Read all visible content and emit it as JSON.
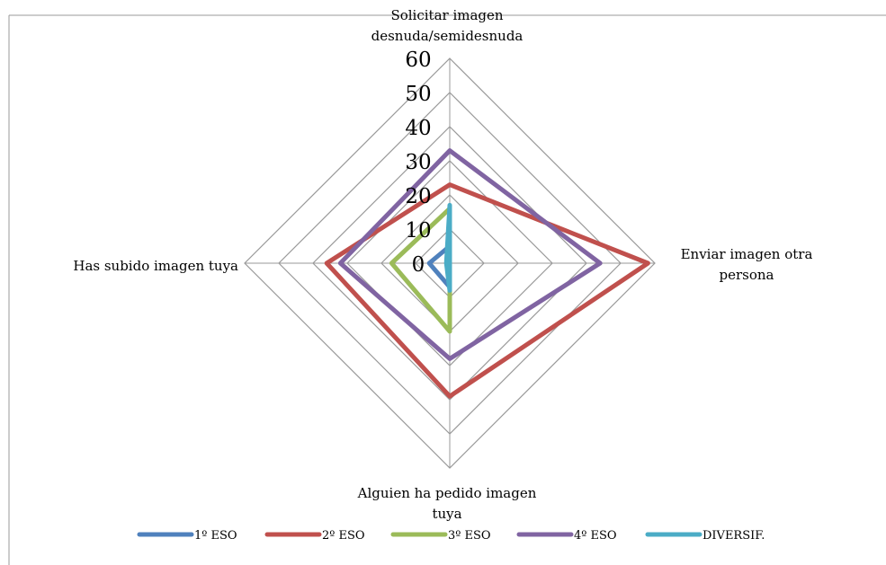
{
  "chart_data": {
    "type": "radar",
    "categories": [
      "Solicitar imagen desnuda/semidesnuda",
      "Enviar imagen otra persona",
      "Alguien ha pedido imagen tuya",
      "Has subido imagen tuya"
    ],
    "series": [
      {
        "name": "1º ESO",
        "color": "#4f81bd",
        "values": [
          5,
          0,
          7,
          6
        ]
      },
      {
        "name": "2º ESO",
        "color": "#c0504d",
        "values": [
          23,
          58,
          39,
          36
        ]
      },
      {
        "name": "3º ESO",
        "color": "#9bbb59",
        "values": [
          16,
          0,
          20,
          17
        ]
      },
      {
        "name": "4º ESO",
        "color": "#8064a2",
        "values": [
          33,
          44,
          28,
          32
        ]
      },
      {
        "name": "DIVERSIF.",
        "color": "#4bacc6",
        "values": [
          17,
          0,
          8,
          1
        ]
      }
    ],
    "ylim": [
      0,
      60
    ],
    "yticks": [
      0,
      10,
      20,
      30,
      40,
      50,
      60
    ],
    "grid": true,
    "legend": "bottom"
  }
}
